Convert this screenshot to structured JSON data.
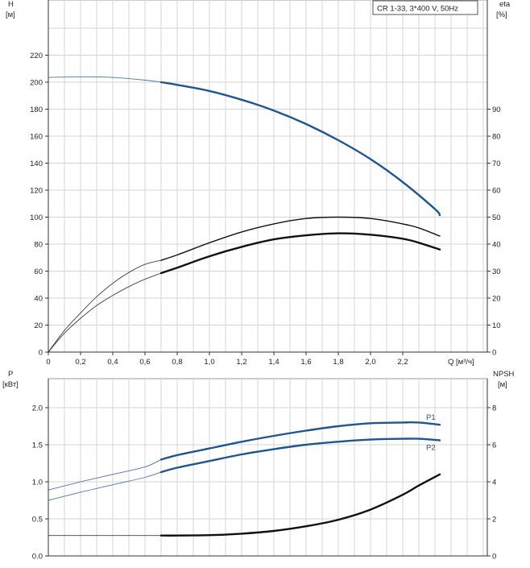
{
  "legend_text": "CR 1-33, 3*400 V, 50Hz",
  "colors": {
    "blue": "#1f5591",
    "black": "#111111",
    "grid": "#d4d4d4"
  },
  "chart_data": [
    {
      "type": "line",
      "panel": "top",
      "xlabel": "Q [м³/ч]",
      "ylabel_left": "H",
      "ylabel_left_unit": "[м]",
      "ylabel_right": "eta",
      "ylabel_right_unit": "[%]",
      "xlim": [
        0,
        2.7
      ],
      "ylim_left": [
        0,
        240
      ],
      "ylim_right": [
        0,
        120
      ],
      "x_ticks": [
        0,
        0.2,
        0.4,
        0.6,
        0.8,
        1.0,
        1.2,
        1.4,
        1.6,
        1.8,
        2.0,
        2.2
      ],
      "x_tick_labels": [
        "0",
        "0,2",
        "0,4",
        "0,6",
        "0,8",
        "1,0",
        "1,2",
        "1,4",
        "1,6",
        "1,8",
        "2,0",
        "2,2"
      ],
      "y_left_ticks": [
        0,
        20,
        40,
        60,
        80,
        100,
        120,
        140,
        160,
        180,
        200,
        220
      ],
      "y_left_tick_labels": [
        "0",
        "20",
        "40",
        "60",
        "80",
        "100",
        "120",
        "140",
        "160",
        "180",
        "200",
        "220"
      ],
      "y_right_ticks": [
        0,
        10,
        20,
        30,
        40,
        50,
        60,
        70,
        80,
        90
      ],
      "y_right_tick_labels": [
        "0",
        "10",
        "20",
        "30",
        "40",
        "50",
        "60",
        "70",
        "80",
        "90"
      ],
      "grid": true,
      "series": [
        {
          "axis": "left",
          "color": "#1f5591",
          "bold_from": 0.7,
          "x": [
            0,
            0.2,
            0.4,
            0.6,
            0.7,
            0.8,
            1.0,
            1.2,
            1.4,
            1.6,
            1.8,
            2.0,
            2.2,
            2.4,
            2.43
          ],
          "y": [
            203.5,
            204,
            203.5,
            201.5,
            200,
            198,
            193.5,
            187,
            179,
            169,
            157,
            143,
            126,
            106,
            101.5
          ]
        },
        {
          "axis": "right",
          "color": "#111111",
          "bold_from": 0.7,
          "x": [
            0,
            0.1,
            0.2,
            0.3,
            0.4,
            0.5,
            0.6,
            0.7,
            0.8,
            1.0,
            1.2,
            1.4,
            1.6,
            1.8,
            2.0,
            2.2,
            2.3,
            2.43
          ],
          "y": [
            0,
            8,
            14.5,
            20.5,
            25.5,
            29.5,
            32.5,
            34,
            36,
            40.5,
            44.5,
            47.5,
            49.5,
            50,
            49.5,
            47.5,
            46,
            43
          ]
        },
        {
          "axis": "left",
          "color": "#111111",
          "bold_from": 0.7,
          "x": [
            0,
            0.1,
            0.2,
            0.3,
            0.4,
            0.5,
            0.6,
            0.7,
            0.8,
            1.0,
            1.2,
            1.4,
            1.6,
            1.8,
            2.0,
            2.2,
            2.3,
            2.43
          ],
          "y": [
            0,
            14,
            25,
            34.5,
            42,
            48.5,
            54,
            58.5,
            62.5,
            71,
            78,
            83.5,
            86.5,
            88,
            87,
            84,
            81,
            76
          ]
        }
      ]
    },
    {
      "type": "line",
      "panel": "bottom",
      "ylabel_left": "P",
      "ylabel_left_unit": "[кВт]",
      "ylabel_right": "NPSH",
      "ylabel_right_unit": "[м]",
      "xlim": [
        0,
        2.7
      ],
      "ylim_left": [
        0,
        2.5
      ],
      "ylim_right": [
        0,
        10
      ],
      "y_left_ticks": [
        0,
        0.5,
        1.0,
        1.5,
        2.0
      ],
      "y_left_tick_labels": [
        "0.0",
        "0.5",
        "1.0",
        "1.5",
        "2.0"
      ],
      "y_right_ticks": [
        0,
        2,
        4,
        6,
        8
      ],
      "y_right_tick_labels": [
        "0",
        "2",
        "4",
        "6",
        "8"
      ],
      "grid": true,
      "series": [
        {
          "name": "P1",
          "axis": "left",
          "color": "#1f5591",
          "bold_from": 0.7,
          "x": [
            0,
            0.2,
            0.4,
            0.6,
            0.7,
            0.8,
            1.0,
            1.2,
            1.4,
            1.6,
            1.8,
            2.0,
            2.2,
            2.3,
            2.43
          ],
          "y": [
            0.89,
            1.0,
            1.1,
            1.2,
            1.3,
            1.36,
            1.45,
            1.54,
            1.62,
            1.69,
            1.75,
            1.79,
            1.8,
            1.8,
            1.77
          ]
        },
        {
          "name": "P2",
          "axis": "left",
          "color": "#1f5591",
          "bold_from": 0.7,
          "x": [
            0,
            0.2,
            0.4,
            0.6,
            0.7,
            0.8,
            1.0,
            1.2,
            1.4,
            1.6,
            1.8,
            2.0,
            2.2,
            2.3,
            2.43
          ],
          "y": [
            0.75,
            0.86,
            0.96,
            1.06,
            1.13,
            1.19,
            1.28,
            1.37,
            1.44,
            1.5,
            1.54,
            1.57,
            1.58,
            1.58,
            1.56
          ]
        },
        {
          "axis": "right",
          "color": "#111111",
          "bold_from": 0.7,
          "x": [
            0,
            0.2,
            0.4,
            0.6,
            0.7,
            0.8,
            1.0,
            1.2,
            1.4,
            1.6,
            1.8,
            2.0,
            2.2,
            2.3,
            2.43
          ],
          "y": [
            1.1,
            1.1,
            1.1,
            1.1,
            1.1,
            1.1,
            1.12,
            1.2,
            1.35,
            1.6,
            1.95,
            2.5,
            3.3,
            3.8,
            4.4
          ]
        }
      ]
    }
  ]
}
